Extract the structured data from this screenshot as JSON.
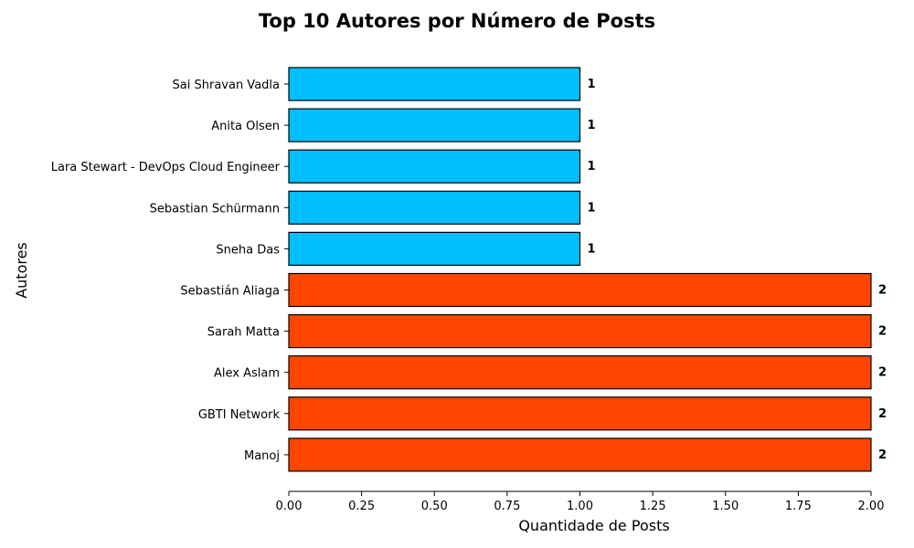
{
  "chart_data": {
    "type": "bar",
    "orientation": "horizontal",
    "title": "Top 10 Autores por Número de Posts",
    "xlabel": "Quantidade de Posts",
    "ylabel": "Autores",
    "xlim": [
      0,
      2
    ],
    "xticks": [
      "0.00",
      "0.25",
      "0.50",
      "0.75",
      "1.00",
      "1.25",
      "1.50",
      "1.75",
      "2.00"
    ],
    "grid": false,
    "categories": [
      "Sai Shravan Vadla",
      "Anita Olsen",
      "Lara Stewart - DevOps Cloud Engineer",
      "Sebastian Schürmann",
      "Sneha Das",
      "Sebastián Aliaga",
      "Sarah Matta",
      "Alex Aslam",
      "GBTI Network",
      "Manoj"
    ],
    "values": [
      1,
      1,
      1,
      1,
      1,
      2,
      2,
      2,
      2,
      2
    ],
    "value_labels": [
      "1",
      "1",
      "1",
      "1",
      "1",
      "2",
      "2",
      "2",
      "2",
      "2"
    ],
    "colors": {
      "low": "#00BFFF",
      "high": "#FF4500",
      "edge": "#000000"
    }
  }
}
